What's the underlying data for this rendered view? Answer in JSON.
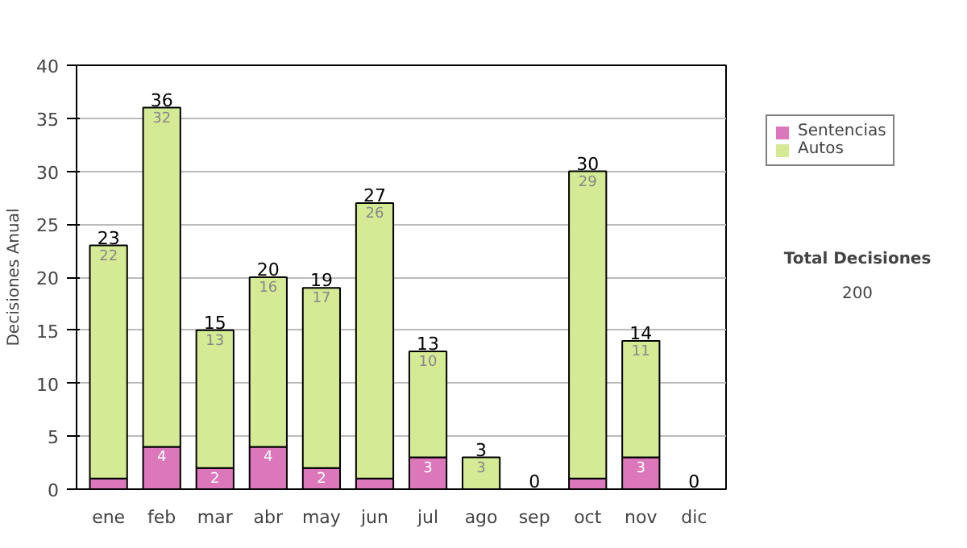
{
  "chart_data": {
    "type": "bar",
    "stacked": true,
    "ylabel": "Decisiones Anual",
    "categories": [
      "ene",
      "feb",
      "mar",
      "abr",
      "may",
      "jun",
      "jul",
      "ago",
      "sep",
      "oct",
      "nov",
      "dic"
    ],
    "series": [
      {
        "name": "Sentencias",
        "color": "#dd77bb",
        "values": [
          1,
          4,
          2,
          4,
          2,
          1,
          3,
          0,
          0,
          1,
          3,
          0
        ],
        "value_labels": [
          null,
          "4",
          "2",
          "4",
          "2",
          null,
          "3",
          null,
          null,
          null,
          "3",
          null
        ]
      },
      {
        "name": "Autos",
        "color": "#d4ea94",
        "values": [
          22,
          32,
          13,
          16,
          17,
          26,
          10,
          3,
          0,
          29,
          11,
          0
        ],
        "value_labels": [
          "22",
          "32",
          "13",
          "16",
          "17",
          "26",
          "10",
          "3",
          null,
          "29",
          "11",
          null
        ]
      }
    ],
    "totals": [
      "23",
      "36",
      "15",
      "20",
      "19",
      "27",
      "13",
      "3",
      "0",
      "30",
      "14",
      "0"
    ],
    "ylim": [
      0,
      40
    ],
    "yticks": [
      0,
      5,
      10,
      15,
      20,
      25,
      30,
      35,
      40
    ],
    "grid": "y",
    "legend": "right",
    "annotations": [
      "Total Decisiones",
      "200"
    ]
  }
}
